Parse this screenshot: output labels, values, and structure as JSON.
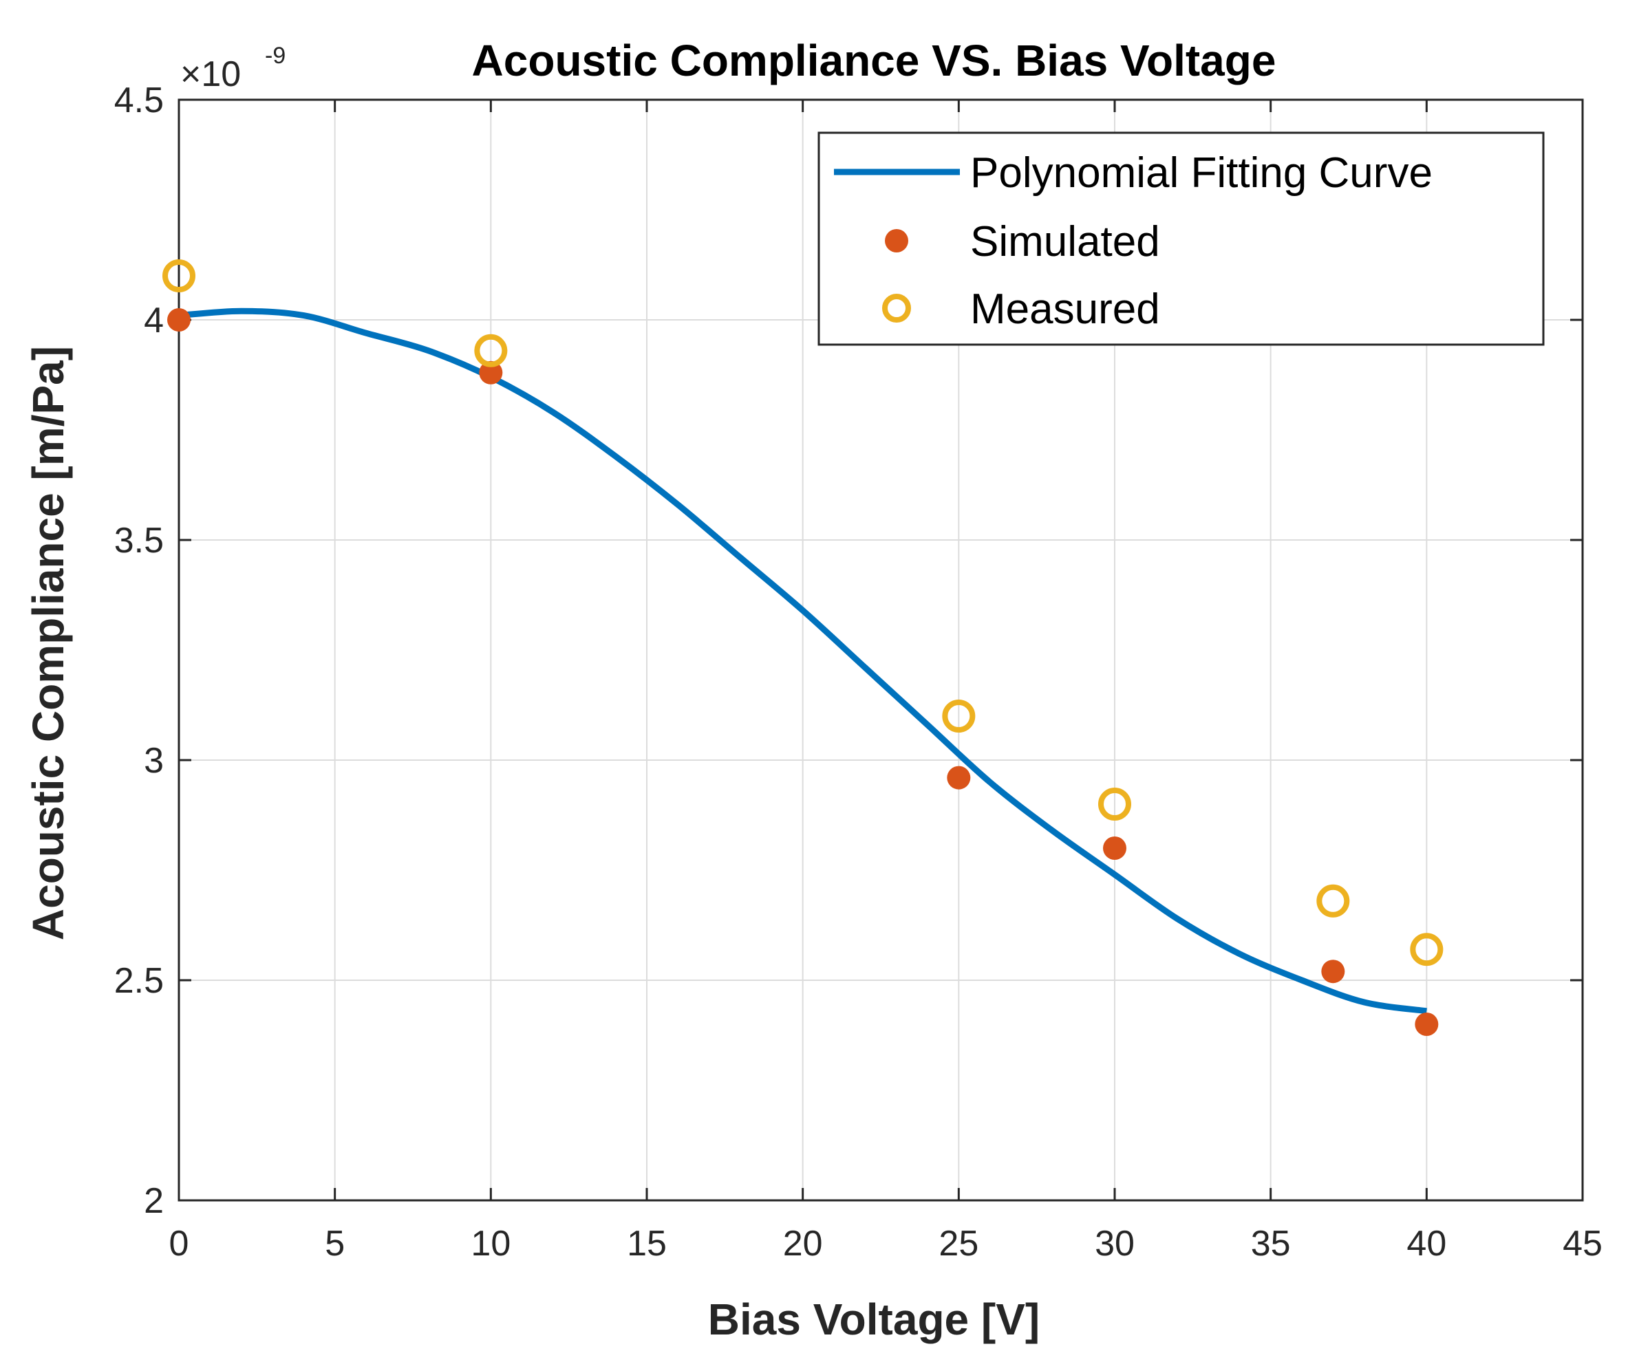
{
  "chart_data": {
    "type": "line",
    "title": "Acoustic Compliance VS. Bias Voltage",
    "xlabel": "Bias Voltage [V]",
    "ylabel": "Acoustic Compliance [m/Pa]",
    "y_exponent_base": "×10",
    "y_exponent": "-9",
    "xlim": [
      0,
      45
    ],
    "ylim": [
      2,
      4.5
    ],
    "xticks": [
      0,
      5,
      10,
      15,
      20,
      25,
      30,
      35,
      40,
      45
    ],
    "yticks": [
      2,
      2.5,
      3,
      3.5,
      4,
      4.5
    ],
    "xtick_labels": [
      "0",
      "5",
      "10",
      "15",
      "20",
      "25",
      "30",
      "35",
      "40",
      "45"
    ],
    "ytick_labels": [
      "2",
      "2.5",
      "3",
      "3.5",
      "4",
      "4.5"
    ],
    "grid": true,
    "legend_position": "top-right",
    "series": [
      {
        "name": "Polynomial Fitting Curve",
        "kind": "line",
        "color": "#0072BD",
        "x": [
          0,
          2,
          4,
          6,
          8,
          10,
          12,
          14,
          16,
          18,
          20,
          22,
          24,
          26,
          28,
          30,
          32,
          34,
          36,
          38,
          40
        ],
        "y": [
          4.01,
          4.02,
          4.01,
          3.97,
          3.93,
          3.87,
          3.79,
          3.69,
          3.58,
          3.46,
          3.34,
          3.21,
          3.08,
          2.95,
          2.84,
          2.74,
          2.64,
          2.56,
          2.5,
          2.45,
          2.43
        ]
      },
      {
        "name": "Simulated",
        "kind": "scatter-filled",
        "color": "#D95319",
        "x": [
          0,
          10,
          25,
          30,
          37,
          40
        ],
        "y": [
          4.0,
          3.88,
          2.96,
          2.8,
          2.52,
          2.4
        ]
      },
      {
        "name": "Measured",
        "kind": "scatter-open",
        "color": "#EDB120",
        "x": [
          0,
          10,
          25,
          30,
          37,
          40
        ],
        "y": [
          4.1,
          3.93,
          3.1,
          2.9,
          2.68,
          2.57
        ]
      }
    ]
  }
}
